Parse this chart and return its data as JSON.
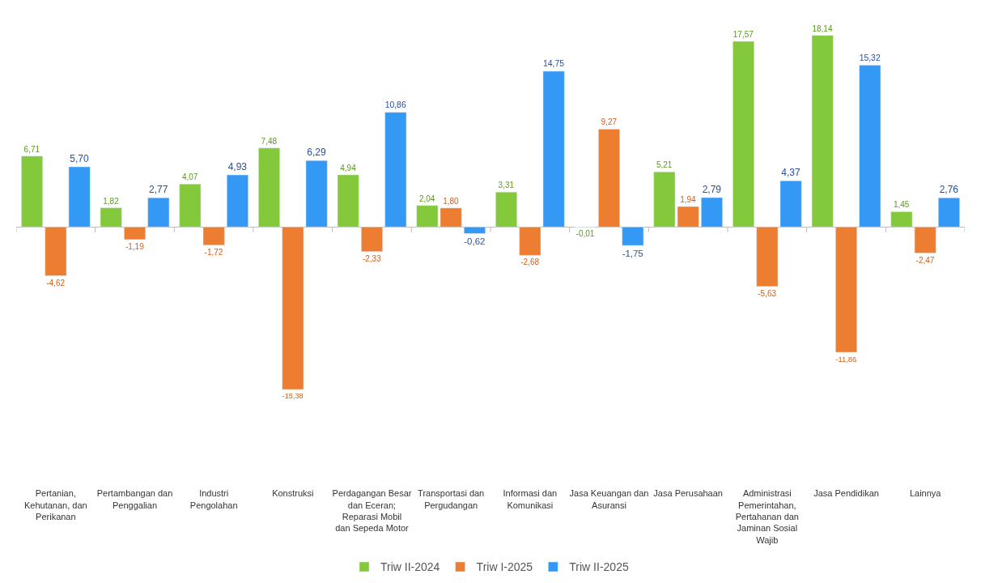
{
  "chart_data": {
    "type": "bar",
    "categories": [
      "Pertanian, Kehutanan, dan Perikanan",
      "Pertambangan dan Penggalian",
      "Industri Pengolahan",
      "Konstruksi",
      "Perdagangan Besar dan Eceran; Reparasi Mobil dan Sepeda Motor",
      "Transportasi dan Pergudangan",
      "Informasi dan Komunikasi",
      "Jasa Keuangan dan Asuransi",
      "Jasa Perusahaan",
      "Administrasi Pemerintahan, Pertahanan dan Jaminan Sosial Wajib",
      "Jasa Pendidikan",
      "Lainnya"
    ],
    "series": [
      {
        "name": "Triw II-2024",
        "color": "#84c93c",
        "values": [
          6.71,
          1.82,
          4.07,
          7.48,
          4.94,
          2.04,
          3.31,
          -0.01,
          5.21,
          17.57,
          18.14,
          1.45
        ],
        "value_labels": [
          "6,71",
          "1,82",
          "4,07",
          "7,48",
          "4,94",
          "2,04",
          "3,31",
          "-0,01",
          "5,21",
          "17,57",
          "18,14",
          "1,45"
        ]
      },
      {
        "name": "Triw I-2025",
        "color": "#ed7d31",
        "values": [
          -4.62,
          -1.19,
          -1.72,
          -15.38,
          -2.33,
          1.8,
          -2.68,
          9.27,
          1.94,
          -5.63,
          -11.86,
          -2.47
        ],
        "value_labels": [
          "-4,62",
          "-1,19",
          "-1,72",
          "-15,38",
          "-2,33",
          "1,80",
          "-2,68",
          "9,27",
          "1,94",
          "-5,63",
          "-11,86",
          "-2,47"
        ]
      },
      {
        "name": "Triw II-2025",
        "color": "#3399f5",
        "values": [
          5.7,
          2.77,
          4.93,
          6.29,
          10.86,
          -0.62,
          14.75,
          -1.75,
          2.79,
          4.37,
          15.32,
          2.76
        ],
        "value_labels": [
          "5,70",
          "2,77",
          "4,93",
          "6,29",
          "10,86",
          "-0,62",
          "14,75",
          "-1,75",
          "2,79",
          "4,37",
          "15,32",
          "2,76"
        ]
      }
    ],
    "legend": "bottom"
  }
}
